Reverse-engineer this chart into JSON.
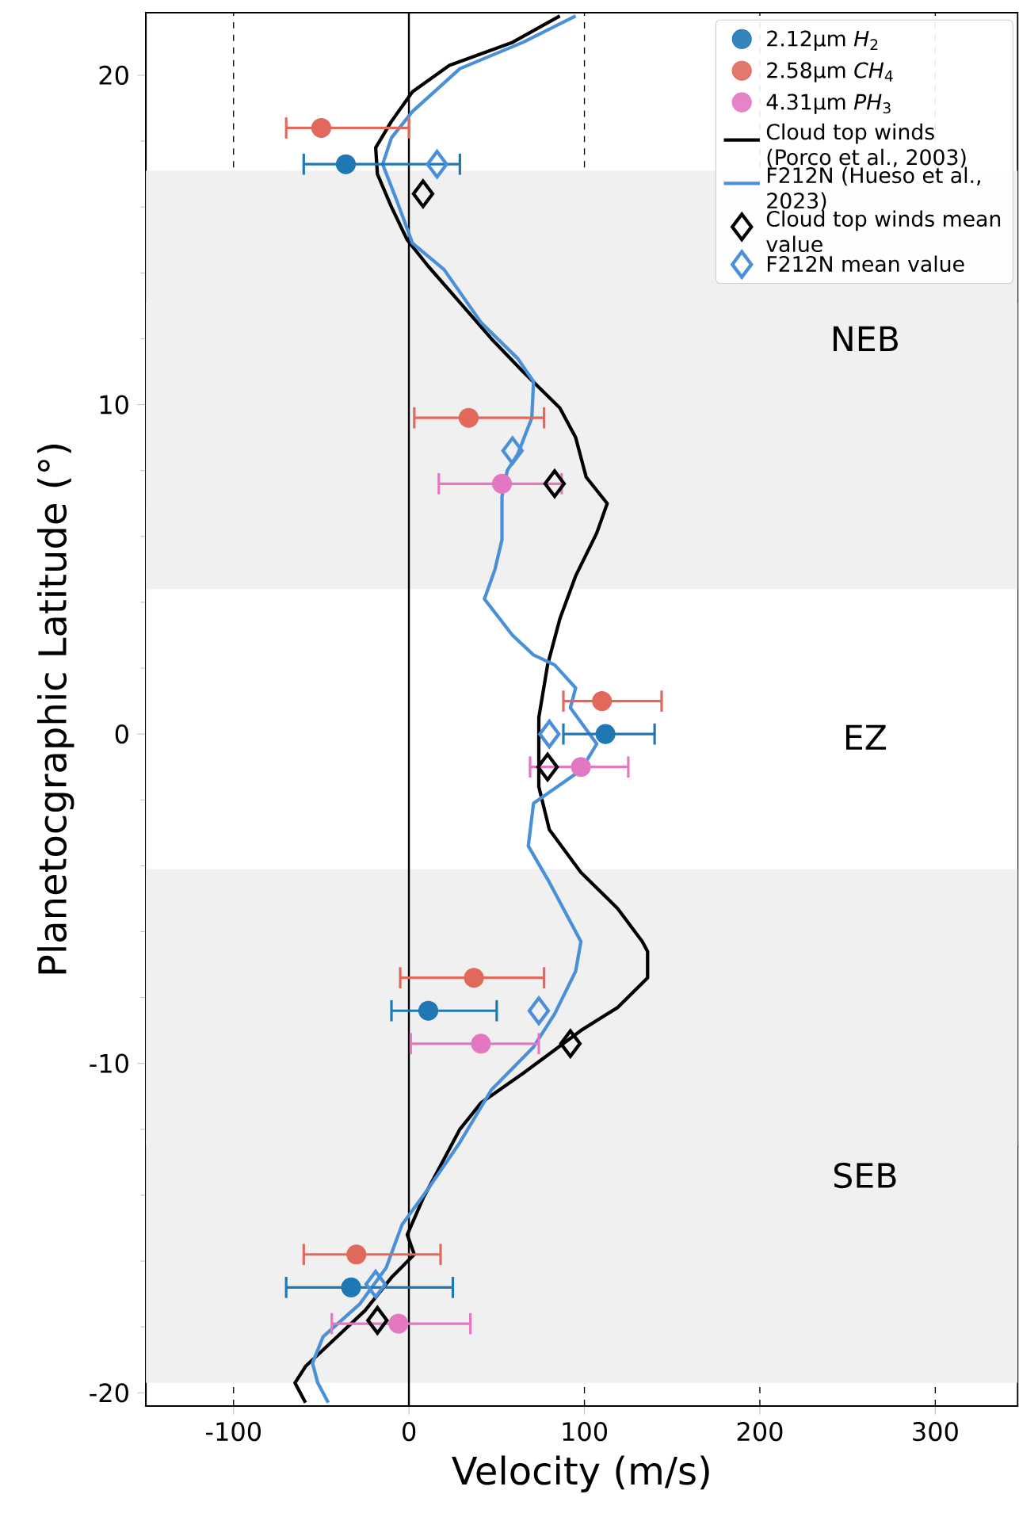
{
  "chart_data": {
    "type": "scatter",
    "xlabel": "Velocity (m/s)",
    "ylabel": "Planetocgraphic Latitude (°)",
    "xlim": [
      -150,
      347
    ],
    "ylim": [
      -20.4,
      21.9
    ],
    "xticks": [
      -100,
      0,
      100,
      200,
      300
    ],
    "yticks": [
      -20,
      -10,
      0,
      10,
      20
    ],
    "grid": "x",
    "legend": "top right",
    "series": [
      {
        "name": "2.12µm *H*$_{2}$",
        "marker": "circle",
        "color": "#1f77b4",
        "x": [
          -36,
          112,
          11,
          -33
        ],
        "values": [
          17.3,
          0.0,
          -8.4,
          -16.8
        ],
        "xerrors": [
          [
            -60,
            29
          ],
          [
            88,
            140
          ],
          [
            -10,
            50
          ],
          [
            -70,
            25
          ]
        ]
      },
      {
        "name": "2.58µm *CH*$_{4}$",
        "marker": "circle",
        "color": "#e0695c",
        "x": [
          -50,
          34,
          110,
          37,
          -30
        ],
        "values": [
          18.4,
          9.6,
          1.0,
          -7.4,
          -15.8
        ],
        "xerrors": [
          [
            -70,
            0
          ],
          [
            3,
            77
          ],
          [
            88,
            144
          ],
          [
            -5,
            77
          ],
          [
            -60,
            18
          ]
        ]
      },
      {
        "name": "4.31µm *PH*$_{3}$",
        "marker": "circle",
        "color": "#e377c2",
        "x": [
          53,
          98,
          41,
          -6
        ],
        "values": [
          7.6,
          -1.0,
          -9.4,
          -17.9
        ],
        "xerrors": [
          [
            17,
            87
          ],
          [
            69,
            125
          ],
          [
            1,
            74
          ],
          [
            -44,
            35
          ]
        ]
      },
      {
        "name": "Cloud top winds (Porco et al., 2003)",
        "type": "line",
        "color": "#000000",
        "x": [
          86,
          59,
          23,
          2,
          -10,
          -19,
          -18,
          -10,
          -1,
          11,
          29,
          47,
          65,
          86,
          95,
          101,
          113,
          107,
          95,
          86,
          79,
          74,
          74,
          80,
          98,
          119,
          133,
          136,
          136,
          119,
          98,
          65,
          41,
          29,
          17,
          8,
          -1,
          3,
          -10,
          -25,
          -43,
          -59,
          -65,
          -59
        ],
        "values": [
          21.8,
          21.0,
          20.3,
          19.5,
          18.6,
          17.8,
          17.0,
          16.0,
          15.0,
          14.2,
          13.1,
          12.0,
          11.0,
          9.9,
          9.0,
          7.8,
          7.0,
          6.1,
          4.8,
          3.5,
          2.1,
          0.5,
          -1.6,
          -2.9,
          -4.2,
          -5.3,
          -6.3,
          -6.6,
          -7.4,
          -8.3,
          -9.0,
          -10.3,
          -11.2,
          -12.0,
          -13.2,
          -14.1,
          -15.2,
          -15.8,
          -16.5,
          -17.5,
          -18.4,
          -19.2,
          -19.7,
          -20.3
        ]
      },
      {
        "name": "F212N (Hueso et al., 2023)",
        "type": "line",
        "color": "#4a90d9",
        "x": [
          95,
          65,
          29,
          2,
          -10,
          -15,
          -7,
          2,
          20,
          41,
          62,
          71,
          70,
          62,
          56,
          53,
          53,
          49,
          43,
          59,
          71,
          83,
          95,
          92,
          107,
          98,
          71,
          68,
          80,
          98,
          95,
          83,
          71,
          47,
          29,
          11,
          -4,
          -13,
          -28,
          -49,
          -55,
          -52,
          -46
        ],
        "values": [
          21.8,
          21.0,
          20.2,
          18.9,
          18.1,
          17.3,
          16.2,
          14.9,
          14.1,
          12.5,
          11.4,
          10.7,
          9.6,
          8.5,
          8.0,
          7.2,
          5.9,
          5.0,
          4.1,
          3.0,
          2.4,
          2.1,
          1.4,
          0.8,
          -0.3,
          -1.1,
          -2.1,
          -3.4,
          -4.5,
          -6.3,
          -7.2,
          -8.5,
          -9.5,
          -10.8,
          -12.4,
          -13.8,
          -14.9,
          -16.2,
          -17.3,
          -18.3,
          -19.1,
          -19.7,
          -20.3
        ]
      },
      {
        "name": "Cloud top winds mean value",
        "marker": "diamond",
        "color": "#000000",
        "x": [
          8,
          83,
          79,
          92,
          -18
        ],
        "values": [
          16.4,
          7.6,
          -1.0,
          -9.4,
          -17.8
        ]
      },
      {
        "name": "F212N mean value",
        "marker": "diamond",
        "color": "#4a90d9",
        "x": [
          16,
          59,
          80,
          74,
          -19
        ],
        "values": [
          17.3,
          8.6,
          0.0,
          -8.4,
          -16.7
        ]
      }
    ],
    "ref_lines": [
      {
        "axis": "x",
        "value": 0,
        "color": "#000000"
      }
    ],
    "bands": [
      {
        "axis": "y",
        "from": -7.1,
        "to": 6.9,
        "color": "#ffffff",
        "label": "EZ"
      },
      {
        "axis": "y",
        "from": 6.9,
        "to": 17.1,
        "color": "#f0f0f0",
        "label": "NEB"
      },
      {
        "axis": "y",
        "from": 4.4,
        "to": 13.1,
        "color": "#f0f0f0"
      },
      {
        "axis": "y",
        "from": -12.5,
        "to": -4.1,
        "color": "#f0f0f0"
      },
      {
        "axis": "y",
        "from": -19.7,
        "to": -7.1,
        "color": "#f0f0f0",
        "label": "SEB"
      }
    ]
  }
}
